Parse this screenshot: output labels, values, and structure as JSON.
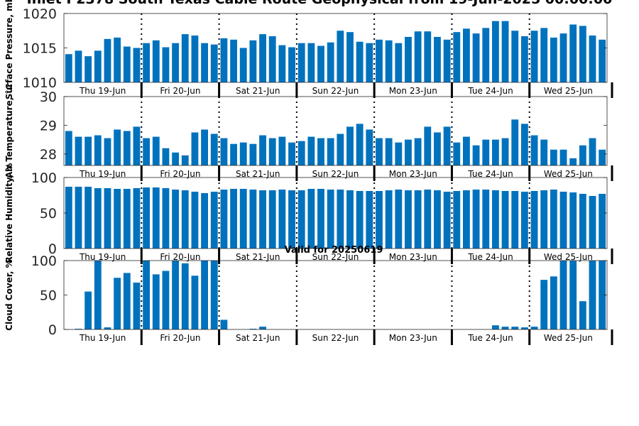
{
  "page": {
    "title": "Inlet P2378 South Texas Cable Route Geophysical from 19-Jun-2025 00:00:00",
    "valid_label": "Valid for 20250619"
  },
  "chart_data": [
    {
      "type": "bar",
      "ylabel": "Surface Pressure, mb",
      "ylim": [
        1010,
        1020
      ],
      "yticks": [
        1010,
        1015,
        1020
      ],
      "day_labels": [
        "Thu 19-Jun",
        "Fri 20-Jun",
        "Sat 21-Jun",
        "Sun 22-Jun",
        "Mon 23-Jun",
        "Tue 24-Jun",
        "Wed 25-Jun"
      ],
      "values": [
        1014.1,
        1014.6,
        1013.8,
        1014.6,
        1016.3,
        1016.5,
        1015.2,
        1015.0,
        1015.7,
        1016.1,
        1015.1,
        1015.7,
        1017.0,
        1016.8,
        1015.7,
        1015.5,
        1016.4,
        1016.2,
        1015.0,
        1016.1,
        1017.0,
        1016.7,
        1015.4,
        1015.1,
        1015.7,
        1015.7,
        1015.3,
        1015.8,
        1017.5,
        1017.3,
        1015.9,
        1015.7,
        1016.2,
        1016.1,
        1015.7,
        1016.6,
        1017.4,
        1017.4,
        1016.6,
        1016.2,
        1017.3,
        1017.8,
        1017.1,
        1017.9,
        1018.9,
        1018.9,
        1017.5,
        1016.7,
        1017.5,
        1017.9,
        1016.5,
        1017.1,
        1018.4,
        1018.2,
        1016.8,
        1016.2
      ]
    },
    {
      "type": "bar",
      "ylabel": "Air Temperature, °C",
      "ylim": [
        27.6,
        30
      ],
      "yticks": [
        28,
        29,
        30
      ],
      "day_labels": [
        "Thu 19-Jun",
        "Fri 20-Jun",
        "Sat 21-Jun",
        "Sun 22-Jun",
        "Mon 23-Jun",
        "Tue 24-Jun",
        "Wed 25-Jun"
      ],
      "values": [
        28.8,
        28.6,
        28.6,
        28.65,
        28.55,
        28.85,
        28.8,
        28.95,
        28.55,
        28.6,
        28.2,
        28.05,
        27.95,
        28.75,
        28.85,
        28.7,
        28.55,
        28.35,
        28.4,
        28.35,
        28.65,
        28.55,
        28.6,
        28.4,
        28.45,
        28.6,
        28.55,
        28.55,
        28.7,
        28.95,
        29.05,
        28.85,
        28.55,
        28.55,
        28.4,
        28.5,
        28.55,
        28.95,
        28.75,
        28.95,
        28.4,
        28.6,
        28.3,
        28.5,
        28.5,
        28.55,
        29.2,
        29.05,
        28.65,
        28.5,
        28.15,
        28.15,
        27.85,
        28.3,
        28.55,
        28.15
      ]
    },
    {
      "type": "bar",
      "ylabel": "Relative Humidity, %",
      "ylim": [
        0,
        100
      ],
      "yticks": [
        0,
        50,
        100
      ],
      "day_labels": [
        "Thu 19-Jun",
        "Fri 20-Jun",
        "Sat 21-Jun",
        "Sun 22-Jun",
        "Mon 23-Jun",
        "Tue 24-Jun",
        "Wed 25-Jun"
      ],
      "values": [
        87,
        87,
        87,
        85,
        85,
        84,
        84,
        85,
        86,
        86,
        85,
        83,
        82,
        80,
        78,
        80,
        83,
        84,
        84,
        83,
        82,
        82,
        83,
        82,
        82,
        84,
        84,
        83,
        83,
        82,
        81,
        81,
        81,
        82,
        83,
        82,
        82,
        83,
        82,
        80,
        81,
        82,
        83,
        83,
        82,
        81,
        81,
        80,
        81,
        82,
        83,
        80,
        79,
        77,
        74,
        77
      ]
    },
    {
      "type": "bar",
      "ylabel": "Cloud Cover, %",
      "ylim": [
        0,
        100
      ],
      "yticks": [
        0,
        50,
        100
      ],
      "day_labels": [
        "Thu 19-Jun",
        "Fri 20-Jun",
        "Sat 21-Jun",
        "Sun 22-Jun",
        "Mon 23-Jun",
        "Tue 24-Jun",
        "Wed 25-Jun"
      ],
      "values": [
        0,
        1,
        55,
        100,
        3,
        75,
        82,
        68,
        100,
        80,
        85,
        100,
        96,
        78,
        100,
        100,
        14,
        0,
        0,
        1,
        4,
        0,
        0,
        0,
        0,
        0,
        0,
        0,
        0,
        0,
        0,
        0,
        0,
        0,
        0,
        0,
        0,
        0,
        0,
        0,
        0,
        0,
        0,
        0,
        6,
        4,
        4,
        3,
        4,
        72,
        77,
        100,
        100,
        41,
        100,
        100
      ]
    }
  ]
}
